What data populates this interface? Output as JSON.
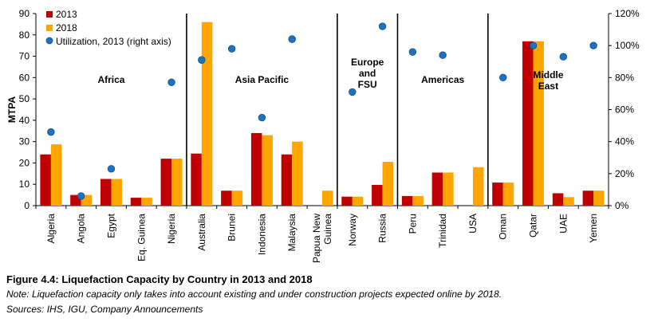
{
  "chart_data": {
    "type": "bar",
    "ylabel": "MTPA",
    "ylim": [
      0,
      90
    ],
    "y_ticks": [
      0,
      10,
      20,
      30,
      40,
      50,
      60,
      70,
      80,
      90
    ],
    "y2lim": [
      0,
      120
    ],
    "y2_ticks": [
      "0%",
      "20%",
      "40%",
      "60%",
      "80%",
      "100%",
      "120%"
    ],
    "y2_tick_values": [
      0,
      20,
      40,
      60,
      80,
      100,
      120
    ],
    "legend": [
      "2013",
      "2018",
      "Utilization, 2013 (right axis)"
    ],
    "categories": [
      "Algeria",
      "Angola",
      "Egypt",
      "Eq. Guinea",
      "Nigeria",
      "Australia",
      "Brunei",
      "Indonesia",
      "Malaysia",
      "Papua New Guinea",
      "Norway",
      "Russia",
      "Peru",
      "Trinidad",
      "USA",
      "Oman",
      "Qatar",
      "UAE",
      "Yemen"
    ],
    "series": [
      {
        "name": "2013",
        "type": "bar",
        "color": "#c00000",
        "values": [
          24,
          5,
          12.5,
          3.7,
          22,
          24.4,
          7,
          34,
          24,
          0,
          4.2,
          9.7,
          4.5,
          15.5,
          0,
          10.8,
          77,
          5.8,
          7
        ]
      },
      {
        "name": "2018",
        "type": "bar",
        "color": "#ffa500",
        "values": [
          28.7,
          5,
          12.5,
          3.7,
          22,
          86,
          7,
          33,
          30,
          7,
          4.2,
          20.5,
          4.5,
          15.5,
          18,
          10.8,
          77,
          4,
          7
        ]
      },
      {
        "name": "Utilization, 2013 (right axis)",
        "type": "scatter",
        "axis": "right",
        "color": "#1e73be",
        "values": [
          46,
          6,
          23,
          null,
          77,
          91,
          98,
          55,
          104,
          null,
          71,
          112,
          96,
          94,
          null,
          80,
          100,
          93,
          100
        ]
      }
    ],
    "regions": [
      {
        "label": "Africa",
        "label_lines": [
          "Africa"
        ],
        "start": 0,
        "end": 4
      },
      {
        "label": "Asia Pacific",
        "label_lines": [
          "Asia Pacific"
        ],
        "start": 5,
        "end": 9
      },
      {
        "label": "Europe and FSU",
        "label_lines": [
          "Europe",
          "and",
          "FSU"
        ],
        "start": 10,
        "end": 11
      },
      {
        "label": "Americas",
        "label_lines": [
          "Americas"
        ],
        "start": 12,
        "end": 14
      },
      {
        "label": "Middle East",
        "label_lines": [
          "Middle",
          "East"
        ],
        "start": 15,
        "end": 18
      }
    ]
  },
  "caption": {
    "title": "Figure 4.4: Liquefaction Capacity by Country in 2013 and 2018",
    "note": "Note: Liquefaction capacity only takes into account existing and under construction projects expected online by 2018.",
    "sources": "Sources: IHS, IGU, Company Announcements"
  }
}
